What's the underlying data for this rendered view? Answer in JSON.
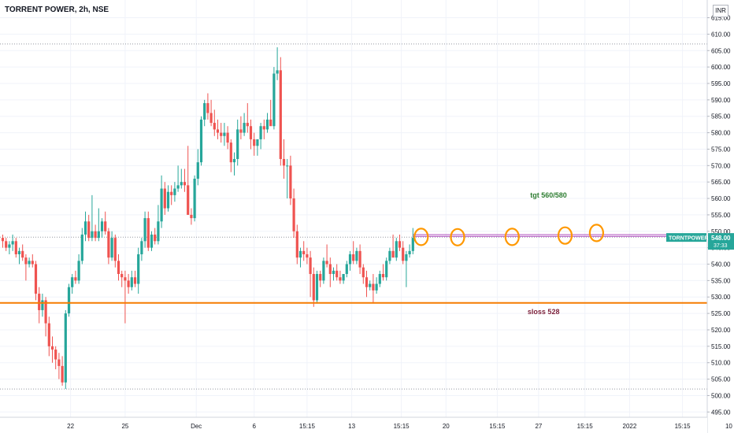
{
  "header": {
    "title": "TORRENT POWER, 2h, NSE",
    "currency": "INR"
  },
  "colors": {
    "up": "#26a69a",
    "down": "#ef5350",
    "stopLine": "#f57c00",
    "targetBand": "#9c27b0",
    "circles": "#ff9800",
    "refLine": "#9598a1",
    "grid": "#f0f3fa",
    "axisText": "#131722"
  },
  "chart_data": {
    "type": "candlestick",
    "symbol": "TORRENT POWER",
    "interval": "2h",
    "exchange": "NSE",
    "ylim": [
      491,
      618
    ],
    "y_ticks": [
      495,
      500,
      505,
      510,
      515,
      520,
      525,
      530,
      535,
      540,
      545,
      550,
      555,
      560,
      565,
      570,
      575,
      580,
      585,
      590,
      595,
      600,
      605,
      610,
      615
    ],
    "y_tick_labels": [
      "495.00",
      "500.00",
      "505.00",
      "510.00",
      "515.00",
      "520.00",
      "525.00",
      "530.00",
      "535.00",
      "540.00",
      "545.00",
      "550.00",
      "555.00",
      "560.00",
      "565.00",
      "570.00",
      "575.00",
      "580.00",
      "585.00",
      "590.00",
      "595.00",
      "600.00",
      "605.00",
      "610.00",
      "615.00"
    ],
    "x_tick_labels": [
      "22",
      "25",
      "Dec",
      "6",
      "15:15",
      "13",
      "15:15",
      "20",
      "15:15",
      "27",
      "15:15",
      "2022",
      "15:15",
      "10"
    ],
    "x_tick_bars": [
      20.5,
      37.0,
      58.5,
      76.0,
      92.0,
      105.5,
      120.5,
      134.0,
      149.5,
      162.0,
      176.0,
      189.5,
      205.5,
      219.5
    ],
    "candles": [
      {
        "o": 548,
        "h": 549,
        "l": 545,
        "c": 547
      },
      {
        "o": 547,
        "h": 548,
        "l": 544,
        "c": 545
      },
      {
        "o": 545,
        "h": 547,
        "l": 543,
        "c": 546
      },
      {
        "o": 546,
        "h": 549,
        "l": 544,
        "c": 547
      },
      {
        "o": 547,
        "h": 548,
        "l": 542,
        "c": 543
      },
      {
        "o": 543,
        "h": 545,
        "l": 540,
        "c": 544
      },
      {
        "o": 544,
        "h": 546,
        "l": 541,
        "c": 542
      },
      {
        "o": 542,
        "h": 543,
        "l": 535,
        "c": 540
      },
      {
        "o": 540,
        "h": 542,
        "l": 539,
        "c": 541
      },
      {
        "o": 541,
        "h": 543,
        "l": 539,
        "c": 540
      },
      {
        "o": 540,
        "h": 541,
        "l": 529,
        "c": 531
      },
      {
        "o": 531,
        "h": 533,
        "l": 522,
        "c": 526
      },
      {
        "o": 526,
        "h": 531,
        "l": 524,
        "c": 529
      },
      {
        "o": 529,
        "h": 530,
        "l": 518,
        "c": 522
      },
      {
        "o": 522,
        "h": 524,
        "l": 512,
        "c": 515
      },
      {
        "o": 515,
        "h": 518,
        "l": 510,
        "c": 514
      },
      {
        "o": 514,
        "h": 515,
        "l": 508,
        "c": 511
      },
      {
        "o": 511,
        "h": 513,
        "l": 505,
        "c": 509
      },
      {
        "o": 509,
        "h": 512,
        "l": 503,
        "c": 504
      },
      {
        "o": 504,
        "h": 526,
        "l": 502,
        "c": 525
      },
      {
        "o": 525,
        "h": 534,
        "l": 524,
        "c": 533
      },
      {
        "o": 533,
        "h": 537,
        "l": 531,
        "c": 536
      },
      {
        "o": 536,
        "h": 538,
        "l": 534,
        "c": 535
      },
      {
        "o": 535,
        "h": 543,
        "l": 534,
        "c": 541
      },
      {
        "o": 541,
        "h": 551,
        "l": 540,
        "c": 549
      },
      {
        "o": 549,
        "h": 556,
        "l": 547,
        "c": 553
      },
      {
        "o": 553,
        "h": 555,
        "l": 547,
        "c": 548
      },
      {
        "o": 548,
        "h": 561,
        "l": 547,
        "c": 550
      },
      {
        "o": 550,
        "h": 552,
        "l": 547,
        "c": 548
      },
      {
        "o": 548,
        "h": 557,
        "l": 547,
        "c": 550
      },
      {
        "o": 550,
        "h": 554,
        "l": 548,
        "c": 553
      },
      {
        "o": 553,
        "h": 556,
        "l": 549,
        "c": 550
      },
      {
        "o": 550,
        "h": 551,
        "l": 540,
        "c": 542
      },
      {
        "o": 542,
        "h": 550,
        "l": 541,
        "c": 548
      },
      {
        "o": 548,
        "h": 549,
        "l": 539,
        "c": 541
      },
      {
        "o": 541,
        "h": 543,
        "l": 535,
        "c": 537
      },
      {
        "o": 537,
        "h": 538,
        "l": 533,
        "c": 536
      },
      {
        "o": 536,
        "h": 538,
        "l": 522,
        "c": 535
      },
      {
        "o": 535,
        "h": 537,
        "l": 531,
        "c": 533
      },
      {
        "o": 533,
        "h": 538,
        "l": 532,
        "c": 536
      },
      {
        "o": 536,
        "h": 538,
        "l": 533,
        "c": 534
      },
      {
        "o": 534,
        "h": 545,
        "l": 531,
        "c": 543
      },
      {
        "o": 543,
        "h": 548,
        "l": 541,
        "c": 547
      },
      {
        "o": 547,
        "h": 556,
        "l": 545,
        "c": 554
      },
      {
        "o": 554,
        "h": 556,
        "l": 544,
        "c": 545
      },
      {
        "o": 545,
        "h": 550,
        "l": 544,
        "c": 549
      },
      {
        "o": 549,
        "h": 551,
        "l": 546,
        "c": 547
      },
      {
        "o": 547,
        "h": 558,
        "l": 546,
        "c": 553
      },
      {
        "o": 553,
        "h": 567,
        "l": 551,
        "c": 563
      },
      {
        "o": 563,
        "h": 565,
        "l": 555,
        "c": 557
      },
      {
        "o": 557,
        "h": 564,
        "l": 556,
        "c": 562
      },
      {
        "o": 562,
        "h": 564,
        "l": 558,
        "c": 561
      },
      {
        "o": 561,
        "h": 565,
        "l": 559,
        "c": 563
      },
      {
        "o": 563,
        "h": 570,
        "l": 562,
        "c": 564
      },
      {
        "o": 564,
        "h": 569,
        "l": 563,
        "c": 565
      },
      {
        "o": 565,
        "h": 569,
        "l": 562,
        "c": 564
      },
      {
        "o": 564,
        "h": 576,
        "l": 556,
        "c": 555
      },
      {
        "o": 555,
        "h": 557,
        "l": 552,
        "c": 554
      },
      {
        "o": 554,
        "h": 567,
        "l": 553,
        "c": 566
      },
      {
        "o": 566,
        "h": 575,
        "l": 564,
        "c": 571
      },
      {
        "o": 571,
        "h": 585,
        "l": 570,
        "c": 584
      },
      {
        "o": 584,
        "h": 590,
        "l": 582,
        "c": 589
      },
      {
        "o": 589,
        "h": 592,
        "l": 584,
        "c": 586
      },
      {
        "o": 586,
        "h": 590,
        "l": 582,
        "c": 583
      },
      {
        "o": 583,
        "h": 587,
        "l": 579,
        "c": 581
      },
      {
        "o": 581,
        "h": 584,
        "l": 578,
        "c": 580
      },
      {
        "o": 580,
        "h": 583,
        "l": 577,
        "c": 579
      },
      {
        "o": 579,
        "h": 583,
        "l": 576,
        "c": 580
      },
      {
        "o": 580,
        "h": 582,
        "l": 575,
        "c": 577
      },
      {
        "o": 577,
        "h": 578,
        "l": 568,
        "c": 571
      },
      {
        "o": 571,
        "h": 574,
        "l": 567,
        "c": 572
      },
      {
        "o": 572,
        "h": 584,
        "l": 570,
        "c": 581
      },
      {
        "o": 581,
        "h": 585,
        "l": 578,
        "c": 580
      },
      {
        "o": 580,
        "h": 586,
        "l": 579,
        "c": 583
      },
      {
        "o": 583,
        "h": 589,
        "l": 580,
        "c": 582
      },
      {
        "o": 582,
        "h": 584,
        "l": 575,
        "c": 578
      },
      {
        "o": 578,
        "h": 580,
        "l": 573,
        "c": 576
      },
      {
        "o": 576,
        "h": 578,
        "l": 573,
        "c": 578
      },
      {
        "o": 578,
        "h": 583,
        "l": 575,
        "c": 582
      },
      {
        "o": 582,
        "h": 584,
        "l": 578,
        "c": 581
      },
      {
        "o": 581,
        "h": 586,
        "l": 580,
        "c": 584
      },
      {
        "o": 584,
        "h": 590,
        "l": 583,
        "c": 582
      },
      {
        "o": 582,
        "h": 600,
        "l": 581,
        "c": 598
      },
      {
        "o": 598,
        "h": 606,
        "l": 596,
        "c": 599
      },
      {
        "o": 599,
        "h": 603,
        "l": 570,
        "c": 572
      },
      {
        "o": 572,
        "h": 578,
        "l": 566,
        "c": 570
      },
      {
        "o": 570,
        "h": 572,
        "l": 560,
        "c": 570
      },
      {
        "o": 570,
        "h": 573,
        "l": 558,
        "c": 560
      },
      {
        "o": 560,
        "h": 563,
        "l": 548,
        "c": 550
      },
      {
        "o": 550,
        "h": 552,
        "l": 540,
        "c": 542
      },
      {
        "o": 542,
        "h": 545,
        "l": 539,
        "c": 544
      },
      {
        "o": 544,
        "h": 547,
        "l": 541,
        "c": 543
      },
      {
        "o": 543,
        "h": 545,
        "l": 540,
        "c": 542
      },
      {
        "o": 542,
        "h": 544,
        "l": 530,
        "c": 537
      },
      {
        "o": 537,
        "h": 539,
        "l": 527,
        "c": 529
      },
      {
        "o": 529,
        "h": 538,
        "l": 528,
        "c": 537
      },
      {
        "o": 537,
        "h": 538,
        "l": 533,
        "c": 535
      },
      {
        "o": 535,
        "h": 542,
        "l": 534,
        "c": 541
      },
      {
        "o": 541,
        "h": 546,
        "l": 539,
        "c": 540
      },
      {
        "o": 540,
        "h": 542,
        "l": 533,
        "c": 537
      },
      {
        "o": 537,
        "h": 539,
        "l": 535,
        "c": 538
      },
      {
        "o": 538,
        "h": 540,
        "l": 535,
        "c": 536
      },
      {
        "o": 536,
        "h": 538,
        "l": 534,
        "c": 535
      },
      {
        "o": 535,
        "h": 537,
        "l": 534,
        "c": 537
      },
      {
        "o": 537,
        "h": 541,
        "l": 536,
        "c": 540
      },
      {
        "o": 540,
        "h": 544,
        "l": 538,
        "c": 543
      },
      {
        "o": 543,
        "h": 547,
        "l": 540,
        "c": 541
      },
      {
        "o": 541,
        "h": 545,
        "l": 540,
        "c": 544
      },
      {
        "o": 544,
        "h": 546,
        "l": 537,
        "c": 539
      },
      {
        "o": 539,
        "h": 540,
        "l": 534,
        "c": 536
      },
      {
        "o": 536,
        "h": 538,
        "l": 530,
        "c": 533
      },
      {
        "o": 533,
        "h": 535,
        "l": 532,
        "c": 534
      },
      {
        "o": 534,
        "h": 537,
        "l": 528,
        "c": 532
      },
      {
        "o": 532,
        "h": 536,
        "l": 531,
        "c": 534
      },
      {
        "o": 534,
        "h": 538,
        "l": 533,
        "c": 537
      },
      {
        "o": 537,
        "h": 540,
        "l": 535,
        "c": 536
      },
      {
        "o": 536,
        "h": 542,
        "l": 535,
        "c": 541
      },
      {
        "o": 541,
        "h": 545,
        "l": 540,
        "c": 544
      },
      {
        "o": 544,
        "h": 549,
        "l": 542,
        "c": 542
      },
      {
        "o": 542,
        "h": 548,
        "l": 541,
        "c": 547
      },
      {
        "o": 547,
        "h": 549,
        "l": 544,
        "c": 545
      },
      {
        "o": 545,
        "h": 547,
        "l": 540,
        "c": 541
      },
      {
        "o": 541,
        "h": 544,
        "l": 533,
        "c": 543
      },
      {
        "o": 543,
        "h": 546,
        "l": 542,
        "c": 544
      },
      {
        "o": 544,
        "h": 551,
        "l": 543,
        "c": 548
      }
    ],
    "horizontal_lines": [
      {
        "name": "stop-loss",
        "value": 528.2,
        "color": "#f57c00",
        "width": 2
      },
      {
        "name": "resistance-band",
        "value": 548.7,
        "color": "#9c27b0",
        "width": 2
      },
      {
        "name": "reference-dotted-high",
        "value": 607,
        "color": "#9598a1",
        "dotted": true
      },
      {
        "name": "reference-dotted-mid",
        "value": 548.2,
        "color": "#9598a1",
        "dotted": true
      },
      {
        "name": "reference-dotted-low",
        "value": 502,
        "color": "#9598a1",
        "dotted": true
      }
    ],
    "circles": [
      {
        "bar": 126.5,
        "price": 548.3
      },
      {
        "bar": 137.5,
        "price": 548.2
      },
      {
        "bar": 154.0,
        "price": 548.3
      },
      {
        "bar": 170.0,
        "price": 548.7
      },
      {
        "bar": 179.5,
        "price": 549.5
      }
    ],
    "annotations": [
      {
        "name": "target-label",
        "text": "tgt 560/580",
        "bar": 165.0,
        "price": 560.2,
        "color": "#2e7d32"
      },
      {
        "name": "stop-loss-label",
        "text": "sloss 528",
        "bar": 163.5,
        "price": 524.8,
        "color": "#7b1f3a"
      }
    ],
    "last_price": {
      "symbol": "TORNTPOWER",
      "price": "548.00",
      "countdown": "37:33",
      "value": 548
    }
  }
}
